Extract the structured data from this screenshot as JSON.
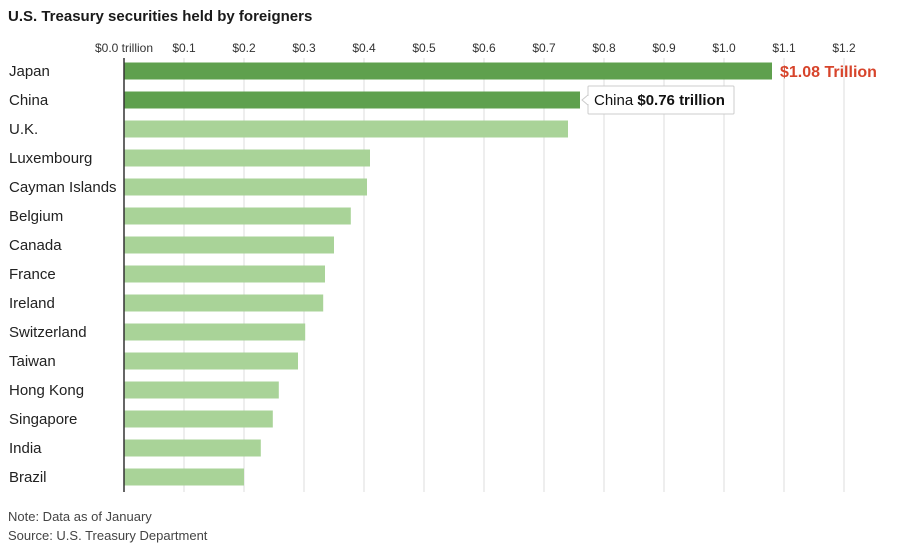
{
  "title": "U.S. Treasury securities held by foreigners",
  "notes": {
    "note": "Note: Data as of January",
    "source": "Source: U.S. Treasury Department"
  },
  "chart_data": {
    "type": "bar",
    "orientation": "horizontal",
    "title": "U.S. Treasury securities held by foreigners",
    "categories": [
      "Japan",
      "China",
      "U.K.",
      "Luxembourg",
      "Cayman Islands",
      "Belgium",
      "Canada",
      "France",
      "Ireland",
      "Switzerland",
      "Taiwan",
      "Hong Kong",
      "Singapore",
      "India",
      "Brazil"
    ],
    "values": [
      1.08,
      0.76,
      0.74,
      0.41,
      0.405,
      0.378,
      0.35,
      0.335,
      0.332,
      0.302,
      0.29,
      0.258,
      0.248,
      0.228,
      0.2
    ],
    "units": "trillion USD",
    "xlim": [
      0,
      1.2
    ],
    "tick_values": [
      0,
      0.1,
      0.2,
      0.3,
      0.4,
      0.5,
      0.6,
      0.7,
      0.8,
      0.9,
      1.0,
      1.1,
      1.2
    ],
    "tick_labels": [
      "$0.0 trillion",
      "$0.1",
      "$0.2",
      "$0.3",
      "$0.4",
      "$0.5",
      "$0.6",
      "$0.7",
      "$0.8",
      "$0.9",
      "$1.0",
      "$1.1",
      "$1.2"
    ],
    "highlighted": [
      "Japan",
      "China"
    ],
    "colors": {
      "bar_highlight": "#5fa04e",
      "bar_default": "#a9d398",
      "gridline": "#dcdcdc",
      "axis": "#333333",
      "annotation_red": "#d7442b"
    },
    "annotations": [
      {
        "category": "Japan",
        "text": "$1.08 Trillion",
        "style": "red-bold"
      },
      {
        "category": "China",
        "prefix": "China",
        "text": "$0.76 trillion",
        "style": "callout-box"
      }
    ],
    "grid": true,
    "legend": "none"
  }
}
